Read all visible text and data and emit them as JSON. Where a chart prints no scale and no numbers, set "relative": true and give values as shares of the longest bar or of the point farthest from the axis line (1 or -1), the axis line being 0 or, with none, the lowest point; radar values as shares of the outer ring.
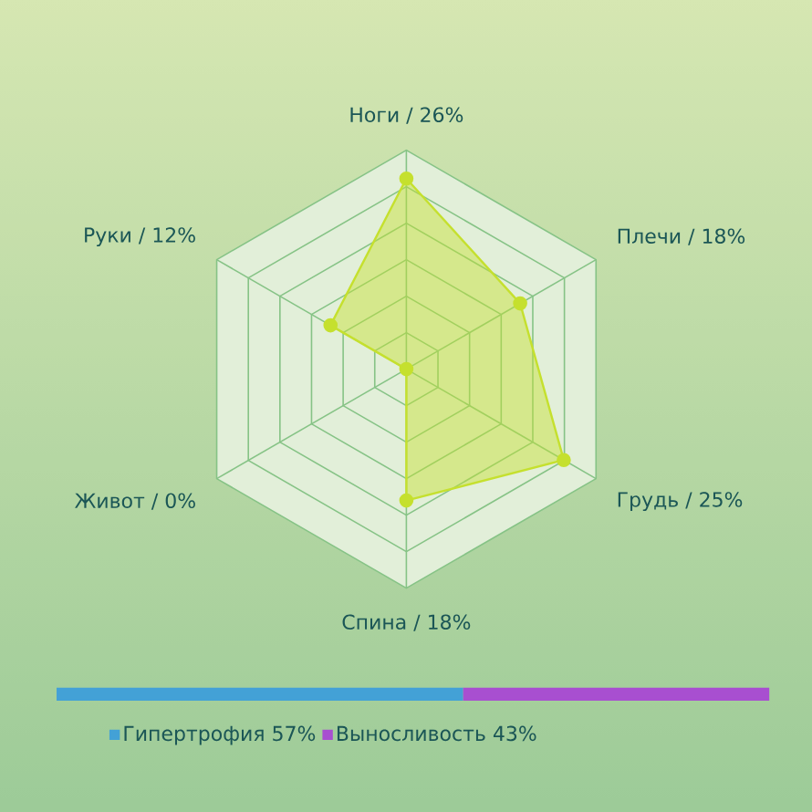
{
  "chart_data": [
    {
      "type": "radar",
      "relative": true,
      "categories": [
        "Ноги / 26%",
        "Плечи / 18%",
        "Грудь / 25%",
        "Спина / 18%",
        "Живот / 0%",
        "Руки / 12%"
      ],
      "series": [
        {
          "color": "#c5e02e",
          "values": [
            0.87,
            0.6,
            0.83,
            0.6,
            0,
            0.4
          ]
        }
      ],
      "grid": true,
      "marker": "circle"
    },
    {
      "type": "bar",
      "orientation": "horizontal",
      "stacked": true,
      "relative": true,
      "categories": [
        null
      ],
      "series": [
        {
          "name": "Гипертрофия 57%",
          "color": "#43a1d6",
          "values": [
            0.57
          ]
        },
        {
          "name": "Выносливость 43%",
          "color": "#a84fd0",
          "values": [
            0.43
          ]
        }
      ],
      "legend": "bottom"
    }
  ]
}
